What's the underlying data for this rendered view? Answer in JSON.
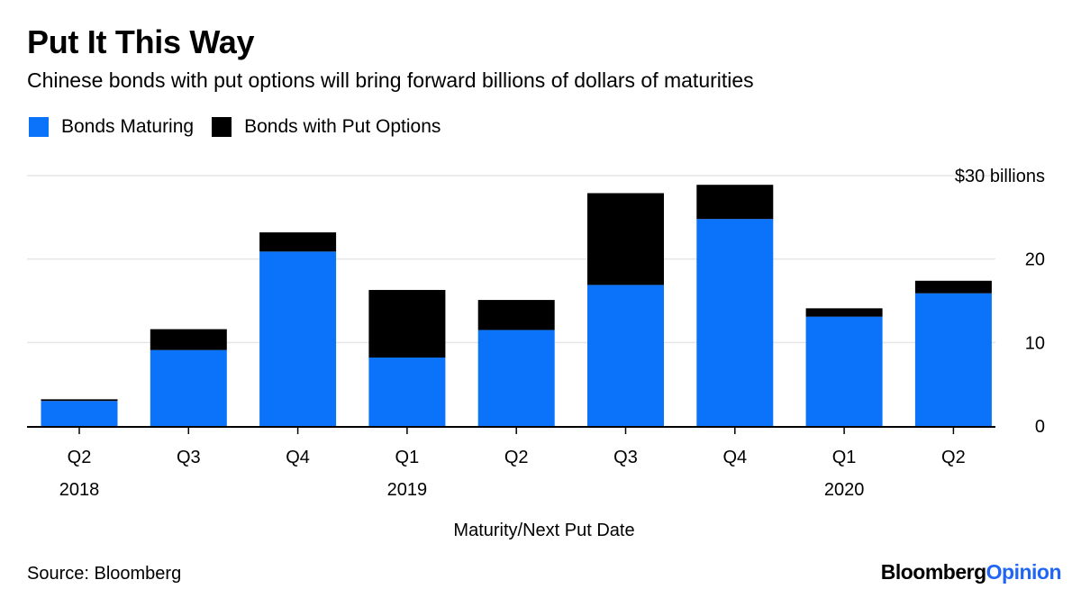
{
  "title": "Put It This Way",
  "subtitle": "Chinese bonds with put options will bring forward billions of dollars of maturities",
  "source": "Source: Bloomberg",
  "brand": {
    "part1": "Bloomberg",
    "part2": "Opinion"
  },
  "colors": {
    "maturing": "#0a73fa",
    "put": "#000000",
    "grid": "#e6e6e6",
    "brand_accent": "#1f66f5"
  },
  "chart_data": {
    "type": "bar",
    "stacked": true,
    "title": "Put It This Way",
    "categories": [
      "Q2",
      "Q3",
      "Q4",
      "Q1",
      "Q2",
      "Q3",
      "Q4",
      "Q1",
      "Q2"
    ],
    "year_labels": [
      {
        "index": 0,
        "label": "2018"
      },
      {
        "index": 3,
        "label": "2019"
      },
      {
        "index": 7,
        "label": "2020"
      }
    ],
    "series": [
      {
        "name": "Bonds Maturing",
        "values": [
          3.0,
          9.1,
          20.9,
          8.2,
          11.5,
          16.9,
          24.8,
          13.1,
          15.9
        ]
      },
      {
        "name": "Bonds with Put Options",
        "values": [
          0.2,
          2.5,
          2.3,
          8.1,
          3.6,
          11.0,
          4.1,
          1.0,
          1.5
        ]
      }
    ],
    "xlabel": "Maturity/Next Put Date",
    "ylabel": "",
    "ylim": [
      0,
      30
    ],
    "yticks": [
      0,
      10,
      20,
      30
    ],
    "ytick_labels": [
      "0",
      "10",
      "20",
      "$30 billions"
    ],
    "grid": true,
    "legend_position": "top-left"
  }
}
